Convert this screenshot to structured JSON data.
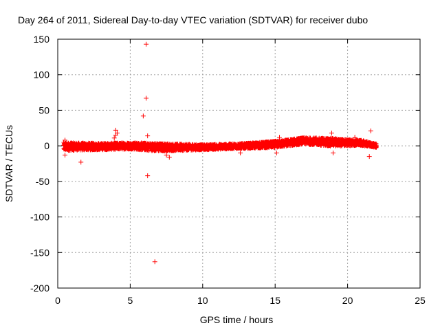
{
  "chart_data": {
    "type": "scatter",
    "title": "Day 264 of 2011, Sidereal Day-to-day VTEC variation (SDTVAR) for receiver dubo",
    "xlabel": "GPS time / hours",
    "ylabel": "SDTVAR / TECUs",
    "xlim": [
      0,
      25
    ],
    "ylim": [
      -200,
      150
    ],
    "xticks": [
      0,
      5,
      10,
      15,
      20,
      25
    ],
    "yticks": [
      -200,
      -150,
      -100,
      -50,
      0,
      50,
      100,
      150
    ],
    "grid": true,
    "marker": "+",
    "color": "#ff0000",
    "band": {
      "description": "dense trace of points around the mean",
      "x_start": 0.4,
      "x_end": 22.0,
      "profile": [
        {
          "x": 0.4,
          "center": -1,
          "halfwidth": 6
        },
        {
          "x": 3.0,
          "center": -1,
          "halfwidth": 5
        },
        {
          "x": 5.0,
          "center": 0,
          "halfwidth": 5
        },
        {
          "x": 7.0,
          "center": -2,
          "halfwidth": 6
        },
        {
          "x": 10.0,
          "center": -2,
          "halfwidth": 4
        },
        {
          "x": 13.0,
          "center": 0,
          "halfwidth": 4
        },
        {
          "x": 15.0,
          "center": 2,
          "halfwidth": 5
        },
        {
          "x": 17.0,
          "center": 7,
          "halfwidth": 5
        },
        {
          "x": 19.0,
          "center": 5,
          "halfwidth": 6
        },
        {
          "x": 21.0,
          "center": 4,
          "halfwidth": 4
        },
        {
          "x": 22.0,
          "center": 0,
          "halfwidth": 3
        }
      ]
    },
    "outliers": [
      {
        "x": 6.1,
        "y": 143
      },
      {
        "x": 6.1,
        "y": 67
      },
      {
        "x": 5.9,
        "y": 42
      },
      {
        "x": 6.2,
        "y": 14
      },
      {
        "x": 6.2,
        "y": -42
      },
      {
        "x": 6.7,
        "y": -163
      },
      {
        "x": 1.6,
        "y": -23
      },
      {
        "x": 4.0,
        "y": 22
      },
      {
        "x": 4.1,
        "y": 18
      },
      {
        "x": 4.0,
        "y": 15
      },
      {
        "x": 3.9,
        "y": 11
      },
      {
        "x": 0.5,
        "y": -13
      },
      {
        "x": 0.5,
        "y": 8
      },
      {
        "x": 7.7,
        "y": -16
      },
      {
        "x": 7.5,
        "y": -13
      },
      {
        "x": 12.6,
        "y": -10
      },
      {
        "x": 15.1,
        "y": -10
      },
      {
        "x": 15.3,
        "y": 12
      },
      {
        "x": 18.9,
        "y": 18
      },
      {
        "x": 19.0,
        "y": -10
      },
      {
        "x": 20.5,
        "y": 12
      },
      {
        "x": 21.6,
        "y": 21
      },
      {
        "x": 21.5,
        "y": -15
      },
      {
        "x": 21.8,
        "y": 3
      }
    ]
  }
}
